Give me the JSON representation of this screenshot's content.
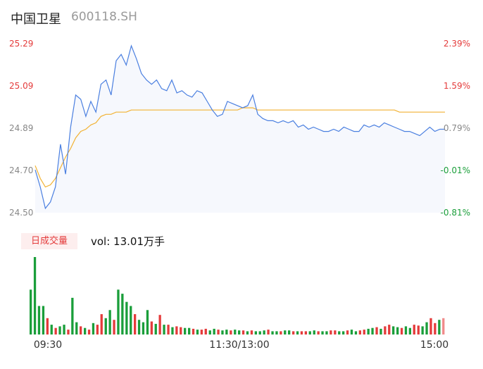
{
  "header": {
    "name": "中国卫星",
    "code": "600118.SH"
  },
  "volume_header": {
    "tag": "日成交量",
    "summary": "vol: 13.01万手"
  },
  "colors": {
    "price_line": "#4a7fe0",
    "avg_line": "#f2b233",
    "area_fill": "#f6f8fd",
    "up": "#e43b3b",
    "down": "#1a9e3a",
    "neutral": "#888888"
  },
  "chart_data": [
    {
      "type": "line",
      "title": "",
      "y_ticks_left": [
        "25.29",
        "25.09",
        "24.89",
        "24.70",
        "24.50"
      ],
      "y_ticks_right": [
        "2.39%",
        "1.59%",
        "0.79%",
        "-0.01%",
        "-0.81%"
      ],
      "ylim": [
        24.5,
        25.29
      ],
      "x_ticks": [
        "09:30",
        "11:30/13:00",
        "15:00"
      ],
      "series": [
        {
          "values": [
            24.7,
            24.62,
            24.52,
            24.55,
            24.62,
            24.82,
            24.68,
            24.9,
            25.05,
            25.03,
            24.95,
            25.02,
            24.97,
            25.1,
            25.12,
            25.05,
            25.21,
            25.24,
            25.19,
            25.28,
            25.22,
            25.15,
            25.12,
            25.1,
            25.12,
            25.08,
            25.07,
            25.12,
            25.06,
            25.07,
            25.05,
            25.04,
            25.07,
            25.06,
            25.02,
            24.98,
            24.95,
            24.96,
            25.02,
            25.01,
            25.0,
            24.99,
            25.0,
            25.05,
            24.96,
            24.94,
            24.93,
            24.93,
            24.92,
            24.93,
            24.92,
            24.93,
            24.9,
            24.91,
            24.89,
            24.9,
            24.89,
            24.88,
            24.88,
            24.89,
            24.88,
            24.9,
            24.89,
            24.88,
            24.88,
            24.91,
            24.9,
            24.91,
            24.9,
            24.92,
            24.91,
            24.9,
            24.89,
            24.88,
            24.88,
            24.87,
            24.86,
            24.88,
            24.9,
            24.88,
            24.89,
            24.89
          ],
          "approx": "minute-level estimate"
        },
        {
          "values": [
            24.72,
            24.66,
            24.62,
            24.63,
            24.66,
            24.71,
            24.76,
            24.8,
            24.85,
            24.88,
            24.89,
            24.91,
            24.92,
            24.95,
            24.96,
            24.96,
            24.97,
            24.97,
            24.97,
            24.98,
            24.98,
            24.98,
            24.98,
            24.98,
            24.98,
            24.98,
            24.98,
            24.98,
            24.98,
            24.98,
            24.98,
            24.98,
            24.98,
            24.98,
            24.98,
            24.98,
            24.98,
            24.98,
            24.98,
            24.98,
            24.98,
            24.99,
            24.99,
            24.99,
            24.98,
            24.98,
            24.98,
            24.98,
            24.98,
            24.98,
            24.98,
            24.98,
            24.98,
            24.98,
            24.98,
            24.98,
            24.98,
            24.98,
            24.98,
            24.98,
            24.98,
            24.98,
            24.98,
            24.98,
            24.98,
            24.98,
            24.98,
            24.98,
            24.98,
            24.98,
            24.98,
            24.98,
            24.97,
            24.97,
            24.97,
            24.97,
            24.97,
            24.97,
            24.97,
            24.97,
            24.97,
            24.97
          ]
        }
      ]
    },
    {
      "type": "bar",
      "title": "",
      "values": [
        55,
        95,
        35,
        35,
        20,
        12,
        8,
        10,
        12,
        6,
        45,
        15,
        10,
        8,
        6,
        14,
        12,
        25,
        20,
        30,
        18,
        55,
        50,
        40,
        35,
        25,
        18,
        15,
        30,
        16,
        13,
        24,
        12,
        12,
        9,
        10,
        9,
        8,
        8,
        7,
        6,
        6,
        7,
        5,
        7,
        6,
        5,
        6,
        5,
        6,
        5,
        5,
        4,
        5,
        4,
        4,
        5,
        6,
        4,
        4,
        4,
        5,
        5,
        4,
        4,
        4,
        4,
        4,
        5,
        4,
        4,
        4,
        5,
        5,
        4,
        4,
        5,
        6,
        4,
        5,
        6,
        7,
        8,
        9,
        7,
        10,
        12,
        10,
        9,
        8,
        10,
        8,
        12,
        11,
        10,
        15,
        20,
        14,
        18,
        20
      ],
      "directions": [
        "d",
        "d",
        "d",
        "d",
        "u",
        "d",
        "u",
        "d",
        "d",
        "u",
        "d",
        "d",
        "u",
        "d",
        "u",
        "d",
        "u",
        "u",
        "d",
        "d",
        "u",
        "d",
        "d",
        "d",
        "d",
        "u",
        "d",
        "d",
        "d",
        "u",
        "d",
        "u",
        "d",
        "u",
        "d",
        "u",
        "u",
        "d",
        "d",
        "u",
        "d",
        "u",
        "u",
        "d",
        "d",
        "u",
        "d",
        "d",
        "u",
        "d",
        "d",
        "u",
        "d",
        "u",
        "d",
        "d",
        "d",
        "u",
        "d",
        "d",
        "u",
        "d",
        "d",
        "u",
        "d",
        "u",
        "u",
        "d",
        "d",
        "u",
        "d",
        "d",
        "u",
        "u",
        "d",
        "d",
        "u",
        "d",
        "d",
        "u",
        "u",
        "d",
        "d",
        "u",
        "d",
        "u",
        "u",
        "d",
        "d",
        "u",
        "d",
        "d",
        "u",
        "u",
        "d",
        "d",
        "u",
        "u",
        "d",
        "n"
      ]
    }
  ]
}
